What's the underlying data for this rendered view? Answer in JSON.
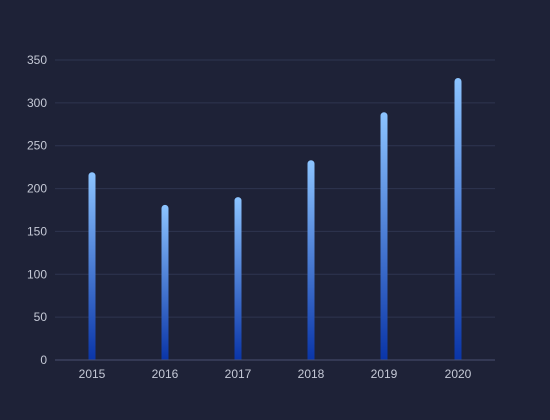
{
  "chart_data": {
    "type": "bar",
    "categories": [
      "2015",
      "2016",
      "2017",
      "2018",
      "2019",
      "2020"
    ],
    "values": [
      219,
      181,
      190,
      233,
      289,
      329
    ],
    "title": "",
    "xlabel": "",
    "ylabel": "",
    "ylim": [
      0,
      350
    ],
    "yticks": [
      0,
      50,
      100,
      150,
      200,
      250,
      300,
      350
    ],
    "grid": true,
    "legend": "none",
    "colors": {
      "background": "#1e2237",
      "bar_top": "#8cc4ff",
      "bar_bottom": "#0a35a8",
      "grid": "#2f3550",
      "axis": "#4a5070",
      "tick_text": "#c5c9d6"
    }
  }
}
